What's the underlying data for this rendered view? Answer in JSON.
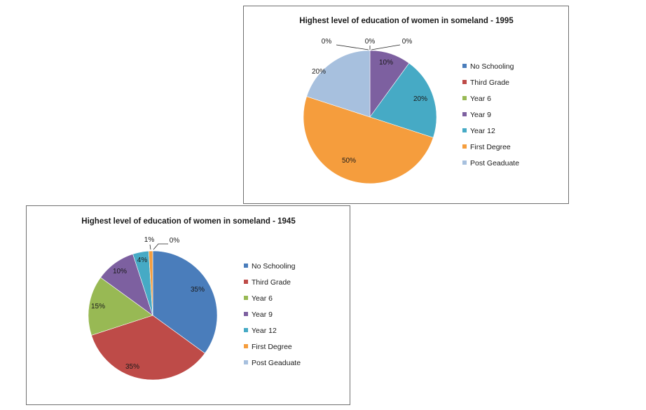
{
  "categories": [
    "No Schooling",
    "Third Grade",
    "Year 6",
    "Year 9",
    "Year 12",
    "First Degree",
    "Post Geaduate"
  ],
  "colors": [
    "#4a7dbb",
    "#be4b48",
    "#98b954",
    "#7d60a0",
    "#46aac5",
    "#f59d3d",
    "#a7c0de"
  ],
  "chart_data": [
    {
      "type": "pie",
      "title": "Highest level of education of women in someland - 1995",
      "categories": [
        "No Schooling",
        "Third Grade",
        "Year 6",
        "Year 9",
        "Year 12",
        "First Degree",
        "Post Geaduate"
      ],
      "values": [
        0,
        0,
        0,
        10,
        20,
        50,
        20
      ],
      "labels": [
        "0%",
        "0%",
        "0%",
        "10%",
        "20%",
        "50%",
        "20%"
      ],
      "legend": "right"
    },
    {
      "type": "pie",
      "title": "Highest level of education of women in someland - 1945",
      "categories": [
        "No Schooling",
        "Third Grade",
        "Year 6",
        "Year 9",
        "Year 12",
        "First Degree",
        "Post Geaduate"
      ],
      "values": [
        35,
        35,
        15,
        10,
        4,
        1,
        0
      ],
      "labels": [
        "35%",
        "35%",
        "15%",
        "10%",
        "4%",
        "1%",
        "0%"
      ],
      "legend": "right"
    }
  ]
}
